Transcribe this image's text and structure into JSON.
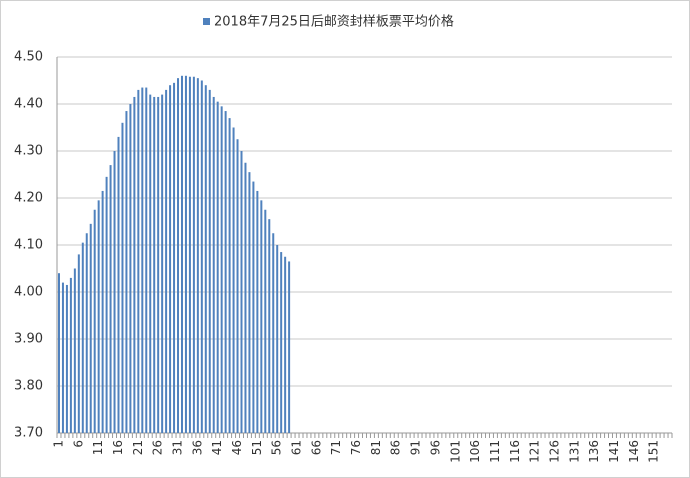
{
  "chart_data": {
    "type": "bar",
    "series": [
      {
        "name": "2018年7月25日后邮资封样板票平均价格",
        "color": "#4f81bd",
        "values": [
          4.04,
          4.02,
          4.015,
          4.03,
          4.05,
          4.08,
          4.105,
          4.125,
          4.145,
          4.175,
          4.195,
          4.215,
          4.245,
          4.27,
          4.3,
          4.33,
          4.36,
          4.385,
          4.4,
          4.415,
          4.43,
          4.435,
          4.435,
          4.42,
          4.415,
          4.415,
          4.42,
          4.43,
          4.44,
          4.445,
          4.455,
          4.46,
          4.46,
          4.458,
          4.458,
          4.455,
          4.45,
          4.44,
          4.43,
          4.415,
          4.405,
          4.395,
          4.385,
          4.37,
          4.35,
          4.325,
          4.3,
          4.275,
          4.255,
          4.235,
          4.215,
          4.195,
          4.175,
          4.155,
          4.125,
          4.1,
          4.085,
          4.075,
          4.065,
          null,
          null,
          null,
          null,
          null,
          null,
          null,
          null,
          null,
          null,
          null,
          null,
          null,
          null,
          null,
          null,
          null,
          null,
          null,
          null,
          null,
          null,
          null,
          null,
          null,
          null,
          null,
          null,
          null,
          null,
          null,
          null,
          null,
          null,
          null,
          null,
          null,
          null,
          null,
          null,
          null,
          null,
          null,
          null,
          null,
          null,
          null,
          null,
          null,
          null,
          null,
          null,
          null,
          null,
          null,
          null,
          null,
          null,
          null,
          null,
          null,
          null,
          null,
          null,
          null,
          null,
          null,
          null,
          null,
          null,
          null,
          null,
          null,
          null,
          null,
          null,
          null,
          null,
          null,
          null,
          null,
          null,
          null,
          null,
          null,
          null,
          null,
          null,
          null,
          null,
          null,
          null,
          null,
          null,
          null,
          null
        ]
      }
    ],
    "categories": [
      "1",
      null,
      null,
      null,
      null,
      "6",
      null,
      null,
      null,
      null,
      "11",
      null,
      null,
      null,
      null,
      "16",
      null,
      null,
      null,
      null,
      "21",
      null,
      null,
      null,
      null,
      "26",
      null,
      null,
      null,
      null,
      "31",
      null,
      null,
      null,
      null,
      "36",
      null,
      null,
      null,
      null,
      "41",
      null,
      null,
      null,
      null,
      "46",
      null,
      null,
      null,
      null,
      "51",
      null,
      null,
      null,
      null,
      "56",
      null,
      null,
      null,
      null,
      "61",
      null,
      null,
      null,
      null,
      "66",
      null,
      null,
      null,
      null,
      "71",
      null,
      null,
      null,
      null,
      "76",
      null,
      null,
      null,
      null,
      "81",
      null,
      null,
      null,
      null,
      "86",
      null,
      null,
      null,
      null,
      "91",
      null,
      null,
      null,
      null,
      "96",
      null,
      null,
      null,
      null,
      "101",
      null,
      null,
      null,
      null,
      "106",
      null,
      null,
      null,
      null,
      "111",
      null,
      null,
      null,
      null,
      "116",
      null,
      null,
      null,
      null,
      "121",
      null,
      null,
      null,
      null,
      "126",
      null,
      null,
      null,
      null,
      "131",
      null,
      null,
      null,
      null,
      "136",
      null,
      null,
      null,
      null,
      "141",
      null,
      null,
      null,
      null,
      "146",
      null,
      null,
      null,
      null,
      "151",
      null,
      null,
      null,
      null
    ],
    "ylim": [
      3.7,
      4.5
    ],
    "yticks": [
      {
        "value": 3.7,
        "label": "3.70"
      },
      {
        "value": 3.8,
        "label": "3.80"
      },
      {
        "value": 3.9,
        "label": "3.90"
      },
      {
        "value": 4.0,
        "label": "4.00"
      },
      {
        "value": 4.1,
        "label": "4.10"
      },
      {
        "value": 4.2,
        "label": "4.20"
      },
      {
        "value": 4.3,
        "label": "4.30"
      },
      {
        "value": 4.4,
        "label": "4.40"
      },
      {
        "value": 4.5,
        "label": "4.50"
      }
    ],
    "grid": true,
    "legend": "top"
  }
}
